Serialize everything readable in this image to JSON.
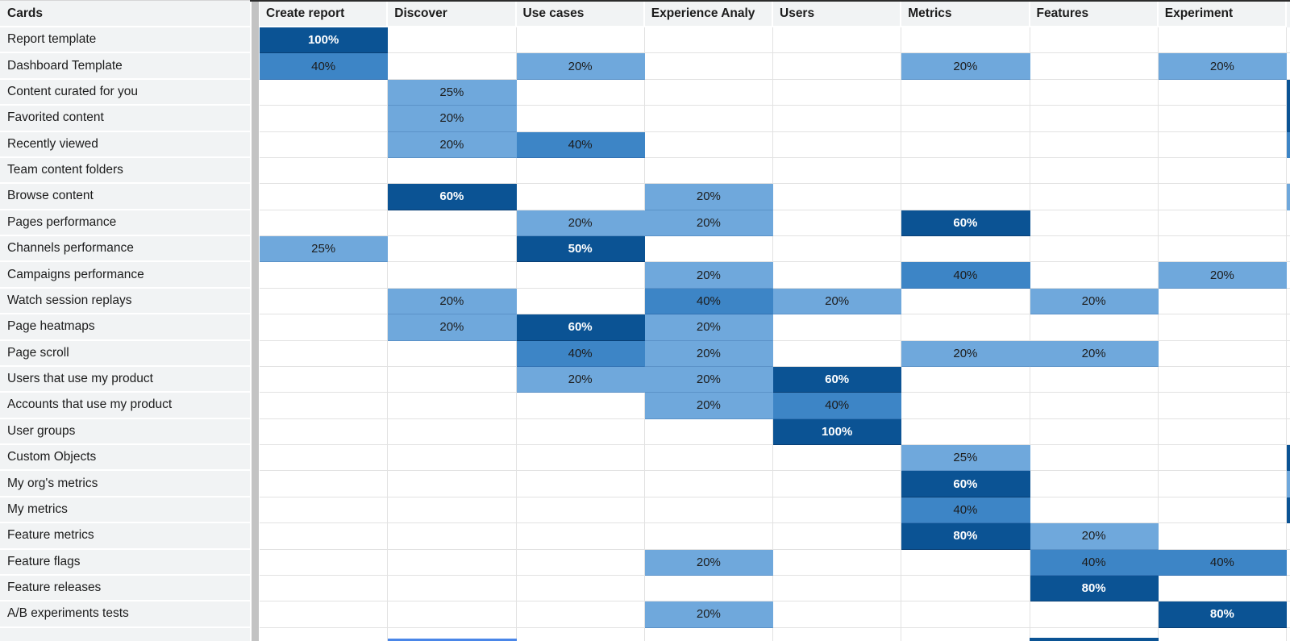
{
  "colors": {
    "dark": "#0b5394",
    "medium": "#3d85c6",
    "light": "#6fa8dc",
    "label_bg": "#f1f3f4",
    "header_bg": "#f1f3f4",
    "gridline": "#e2e2e2",
    "divider_bar": "#c3c3c3",
    "top_border": "#2b2b2b",
    "selection": "#4a86e8"
  },
  "corner": {
    "label": "Cards"
  },
  "columns": [
    "Create report",
    "Discover",
    "Use cases",
    "Experience Analy",
    "Users",
    "Metrics",
    "Features",
    "Experiment"
  ],
  "legend_levels": {
    "light": "20-25%",
    "medium": "40%",
    "dark": "50-100%"
  },
  "rows": [
    {
      "label": "Report template",
      "cells": [
        {
          "col": 0,
          "value": "100%",
          "level": "dark"
        }
      ],
      "edge": null
    },
    {
      "label": "Dashboard Template",
      "cells": [
        {
          "col": 0,
          "value": "40%",
          "level": "medium"
        },
        {
          "col": 2,
          "value": "20%",
          "level": "light"
        },
        {
          "col": 5,
          "value": "20%",
          "level": "light"
        },
        {
          "col": 7,
          "value": "20%",
          "level": "light"
        }
      ],
      "edge": null
    },
    {
      "label": "Content curated for you",
      "cells": [
        {
          "col": 1,
          "value": "25%",
          "level": "light"
        }
      ],
      "edge": "dark"
    },
    {
      "label": "Favorited content",
      "cells": [
        {
          "col": 1,
          "value": "20%",
          "level": "light"
        }
      ],
      "edge": "dark"
    },
    {
      "label": "Recently viewed",
      "cells": [
        {
          "col": 1,
          "value": "20%",
          "level": "light"
        },
        {
          "col": 2,
          "value": "40%",
          "level": "medium"
        }
      ],
      "edge": "medium"
    },
    {
      "label": "Team content folders",
      "cells": [],
      "edge": null
    },
    {
      "label": "Browse content",
      "cells": [
        {
          "col": 1,
          "value": "60%",
          "level": "dark"
        },
        {
          "col": 3,
          "value": "20%",
          "level": "light"
        }
      ],
      "edge": "light"
    },
    {
      "label": "Pages performance",
      "cells": [
        {
          "col": 2,
          "value": "20%",
          "level": "light"
        },
        {
          "col": 3,
          "value": "20%",
          "level": "light"
        },
        {
          "col": 5,
          "value": "60%",
          "level": "dark"
        }
      ],
      "edge": null
    },
    {
      "label": "Channels performance",
      "cells": [
        {
          "col": 0,
          "value": "25%",
          "level": "light"
        },
        {
          "col": 2,
          "value": "50%",
          "level": "dark"
        }
      ],
      "edge": null
    },
    {
      "label": "Campaigns performance",
      "cells": [
        {
          "col": 3,
          "value": "20%",
          "level": "light"
        },
        {
          "col": 5,
          "value": "40%",
          "level": "medium"
        },
        {
          "col": 7,
          "value": "20%",
          "level": "light"
        }
      ],
      "edge": null
    },
    {
      "label": "Watch session replays",
      "cells": [
        {
          "col": 1,
          "value": "20%",
          "level": "light"
        },
        {
          "col": 3,
          "value": "40%",
          "level": "medium"
        },
        {
          "col": 4,
          "value": "20%",
          "level": "light"
        },
        {
          "col": 6,
          "value": "20%",
          "level": "light"
        }
      ],
      "edge": null
    },
    {
      "label": "Page heatmaps",
      "cells": [
        {
          "col": 1,
          "value": "20%",
          "level": "light"
        },
        {
          "col": 2,
          "value": "60%",
          "level": "dark"
        },
        {
          "col": 3,
          "value": "20%",
          "level": "light"
        }
      ],
      "edge": null
    },
    {
      "label": "Page scroll",
      "cells": [
        {
          "col": 2,
          "value": "40%",
          "level": "medium"
        },
        {
          "col": 3,
          "value": "20%",
          "level": "light"
        },
        {
          "col": 5,
          "value": "20%",
          "level": "light"
        },
        {
          "col": 6,
          "value": "20%",
          "level": "light"
        }
      ],
      "edge": null
    },
    {
      "label": "Users that use my product",
      "cells": [
        {
          "col": 2,
          "value": "20%",
          "level": "light"
        },
        {
          "col": 3,
          "value": "20%",
          "level": "light"
        },
        {
          "col": 4,
          "value": "60%",
          "level": "dark"
        }
      ],
      "edge": null
    },
    {
      "label": "Accounts that use my product",
      "cells": [
        {
          "col": 3,
          "value": "20%",
          "level": "light"
        },
        {
          "col": 4,
          "value": "40%",
          "level": "medium"
        }
      ],
      "edge": null
    },
    {
      "label": "User groups",
      "cells": [
        {
          "col": 4,
          "value": "100%",
          "level": "dark"
        }
      ],
      "edge": null
    },
    {
      "label": "Custom Objects",
      "cells": [
        {
          "col": 5,
          "value": "25%",
          "level": "light"
        }
      ],
      "edge": "dark"
    },
    {
      "label": "My org's metrics",
      "cells": [
        {
          "col": 5,
          "value": "60%",
          "level": "dark"
        }
      ],
      "edge": "light"
    },
    {
      "label": "My metrics",
      "cells": [
        {
          "col": 5,
          "value": "40%",
          "level": "medium"
        }
      ],
      "edge": "dark"
    },
    {
      "label": "Feature metrics",
      "cells": [
        {
          "col": 5,
          "value": "80%",
          "level": "dark"
        },
        {
          "col": 6,
          "value": "20%",
          "level": "light"
        }
      ],
      "edge": null
    },
    {
      "label": "Feature flags",
      "cells": [
        {
          "col": 3,
          "value": "20%",
          "level": "light"
        },
        {
          "col": 6,
          "value": "40%",
          "level": "medium"
        },
        {
          "col": 7,
          "value": "40%",
          "level": "medium"
        }
      ],
      "edge": null
    },
    {
      "label": "Feature releases",
      "cells": [
        {
          "col": 6,
          "value": "80%",
          "level": "dark"
        }
      ],
      "edge": null
    },
    {
      "label": "A/B experiments tests",
      "cells": [
        {
          "col": 3,
          "value": "20%",
          "level": "light"
        },
        {
          "col": 7,
          "value": "80%",
          "level": "dark"
        }
      ],
      "edge": null
    }
  ],
  "partial_next_row": {
    "discover_selection_border": true,
    "features_cell_top_level": "dark"
  }
}
